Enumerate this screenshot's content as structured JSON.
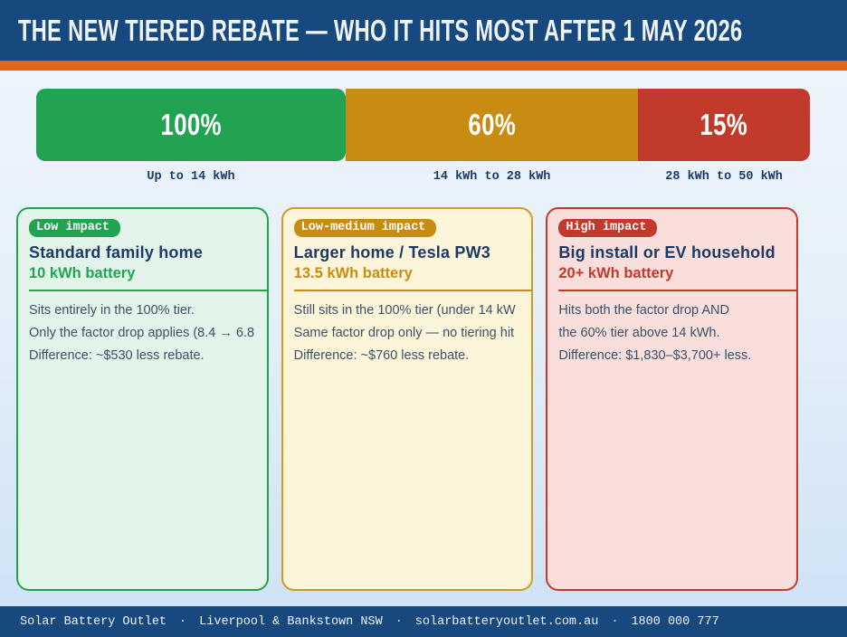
{
  "header": {
    "title": "THE NEW TIERED REBATE — WHO IT HITS MOST AFTER 1 MAY 2026"
  },
  "tiers": [
    {
      "percent": "100%",
      "range": "Up to 14 kWh",
      "color": "#21a351"
    },
    {
      "percent": "60%",
      "range": "14 kWh to 28 kWh",
      "color": "#c88c13"
    },
    {
      "percent": "15%",
      "range": "28 kWh to 50 kWh",
      "color": "#c13a2b"
    }
  ],
  "cards": [
    {
      "badge": "Low impact",
      "title": "Standard family home",
      "subtitle": "10 kWh battery",
      "accent": "#21a351",
      "lines": [
        "Sits entirely in the 100% tier.",
        "Only the factor drop applies (8.4 → 6.8",
        "Difference: ~$530 less rebate."
      ]
    },
    {
      "badge": "Low-medium impact",
      "title": "Larger home / Tesla PW3",
      "subtitle": "13.5 kWh battery",
      "accent": "#c88c13",
      "lines": [
        "Still sits in the 100% tier (under 14 kW",
        "Same factor drop only — no tiering hit",
        "Difference: ~$760 less rebate."
      ]
    },
    {
      "badge": "High impact",
      "title": "Big install or EV household",
      "subtitle": "20+ kWh battery",
      "accent": "#c13a2b",
      "lines": [
        "Hits both the factor drop AND",
        "the 60% tier above 14 kWh.",
        "Difference: $1,830–$3,700+ less."
      ]
    }
  ],
  "footer": {
    "separator": "·",
    "items": [
      "Solar Battery Outlet",
      "Liverpool & Bankstown NSW",
      "solarbatteryoutlet.com.au",
      "1800 000 777"
    ]
  },
  "colors": {
    "header_navy": "#17497f",
    "accent_orange": "#e3661b",
    "tier_green": "#21a351",
    "tier_gold": "#c88c13",
    "tier_red": "#c13a2b",
    "title_navy": "#1d3a66",
    "body_text": "#3d5166",
    "background_light": "#eef5fc",
    "background_bottom": "#cde1f4"
  }
}
